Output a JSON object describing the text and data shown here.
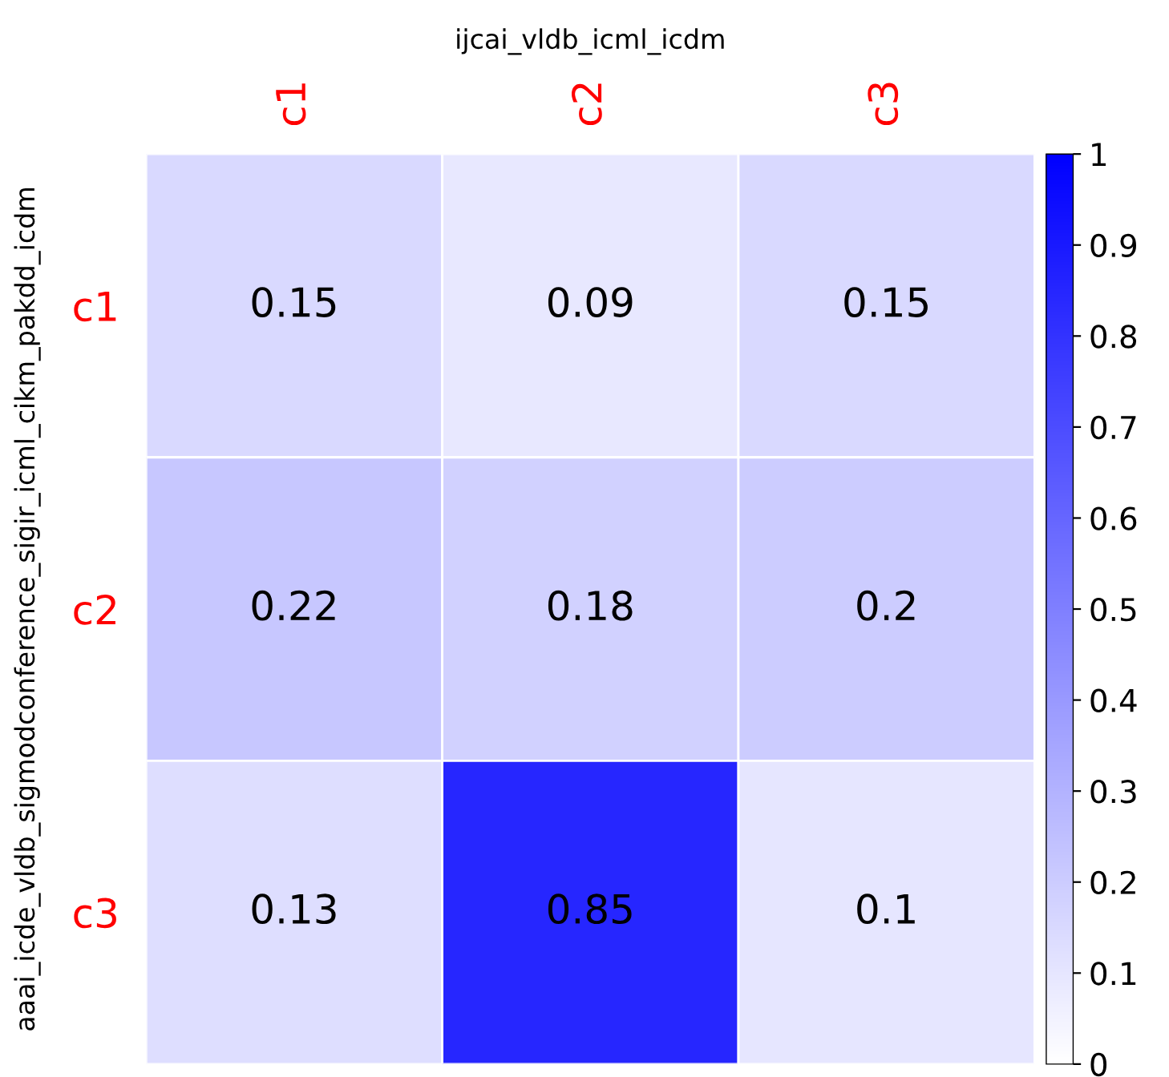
{
  "chart_data": {
    "type": "heatmap",
    "xlabel": "ijcai_vldb_icml_icdm",
    "ylabel": "aaai_icde_vldb_sigmodconference_sigir_icml_cikm_pakdd_icdm",
    "categories": [
      "c1",
      "c2",
      "c3"
    ],
    "y_categories": [
      "c1",
      "c2",
      "c3"
    ],
    "cells": [
      [
        0.15,
        0.09,
        0.15
      ],
      [
        0.22,
        0.18,
        0.2
      ],
      [
        0.13,
        0.85,
        0.1
      ]
    ],
    "data_labels": true,
    "clim": [
      0,
      1
    ],
    "cticks": [
      0,
      0.1,
      0.2,
      0.3,
      0.4,
      0.5,
      0.6,
      0.7,
      0.8,
      0.9,
      1
    ],
    "color": "#0000ff"
  }
}
